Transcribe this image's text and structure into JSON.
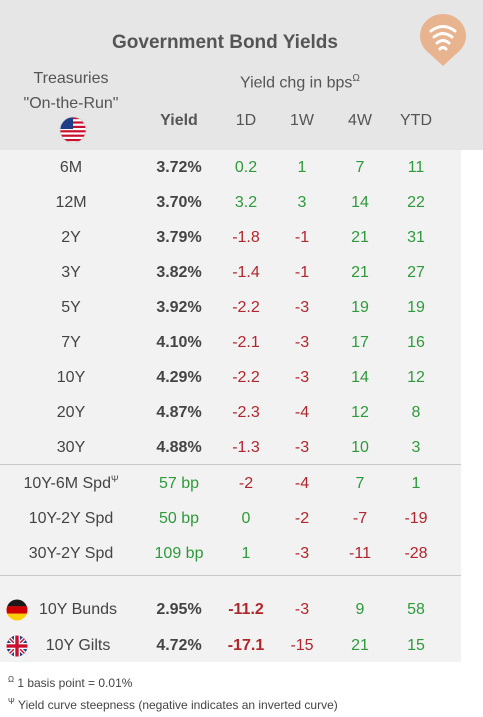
{
  "title": "Government Bond Yields",
  "logo_icon": "wifi-signal-logo",
  "header": {
    "treasuries_line1": "Treasuries",
    "treasuries_line2": "\"On-the-Run\"",
    "flag_icon": "us-flag-icon",
    "yield_change_label": "Yield chg in bps",
    "yield_change_mark": "Ω",
    "col_yield": "Yield",
    "col_1d": "1D",
    "col_1w": "1W",
    "col_4w": "4W",
    "col_ytd": "YTD"
  },
  "treasuries": [
    {
      "label": "6M",
      "yield": "3.72%",
      "d1": "0.2",
      "w1": "1",
      "w4": "7",
      "ytd": "11"
    },
    {
      "label": "12M",
      "yield": "3.70%",
      "d1": "3.2",
      "w1": "3",
      "w4": "14",
      "ytd": "22"
    },
    {
      "label": "2Y",
      "yield": "3.79%",
      "d1": "-1.8",
      "w1": "-1",
      "w4": "21",
      "ytd": "31"
    },
    {
      "label": "3Y",
      "yield": "3.82%",
      "d1": "-1.4",
      "w1": "-1",
      "w4": "21",
      "ytd": "27"
    },
    {
      "label": "5Y",
      "yield": "3.92%",
      "d1": "-2.2",
      "w1": "-3",
      "w4": "19",
      "ytd": "19"
    },
    {
      "label": "7Y",
      "yield": "4.10%",
      "d1": "-2.1",
      "w1": "-3",
      "w4": "17",
      "ytd": "16"
    },
    {
      "label": "10Y",
      "yield": "4.29%",
      "d1": "-2.2",
      "w1": "-3",
      "w4": "14",
      "ytd": "12"
    },
    {
      "label": "20Y",
      "yield": "4.87%",
      "d1": "-2.3",
      "w1": "-4",
      "w4": "12",
      "ytd": "8"
    },
    {
      "label": "30Y",
      "yield": "4.88%",
      "d1": "-1.3",
      "w1": "-3",
      "w4": "10",
      "ytd": "3"
    }
  ],
  "spreads": [
    {
      "label": "10Y-6M Spd",
      "mark": "Ψ",
      "yield": "57 bp",
      "d1": "-2",
      "w1": "-4",
      "w4": "7",
      "ytd": "1"
    },
    {
      "label": "10Y-2Y Spd",
      "mark": "",
      "yield": "50 bp",
      "d1": "0",
      "w1": "-2",
      "w4": "-7",
      "ytd": "-19"
    },
    {
      "label": "30Y-2Y Spd",
      "mark": "",
      "yield": "109 bp",
      "d1": "1",
      "w1": "-3",
      "w4": "-11",
      "ytd": "-28"
    }
  ],
  "international": [
    {
      "label": "10Y Bunds",
      "flag_icon": "germany-flag-icon",
      "yield": "2.95%",
      "d1": "-11.2",
      "w1": "-3",
      "w4": "9",
      "ytd": "58"
    },
    {
      "label": "10Y Gilts",
      "flag_icon": "uk-flag-icon",
      "yield": "4.72%",
      "d1": "-17.1",
      "w1": "-15",
      "w4": "21",
      "ytd": "15"
    }
  ],
  "footnotes": {
    "note1_mark": "Ω",
    "note1": "1 basis point = 0.01%",
    "note2_mark": "Ψ",
    "note2": "Yield curve steepness (negative indicates an inverted curve)"
  },
  "colors": {
    "positive": "#2e9a3a",
    "negative": "#b0262d",
    "header_bg": "#e6e6e6",
    "body_bg": "#f2f2f2",
    "logo": "#e8b48f"
  }
}
